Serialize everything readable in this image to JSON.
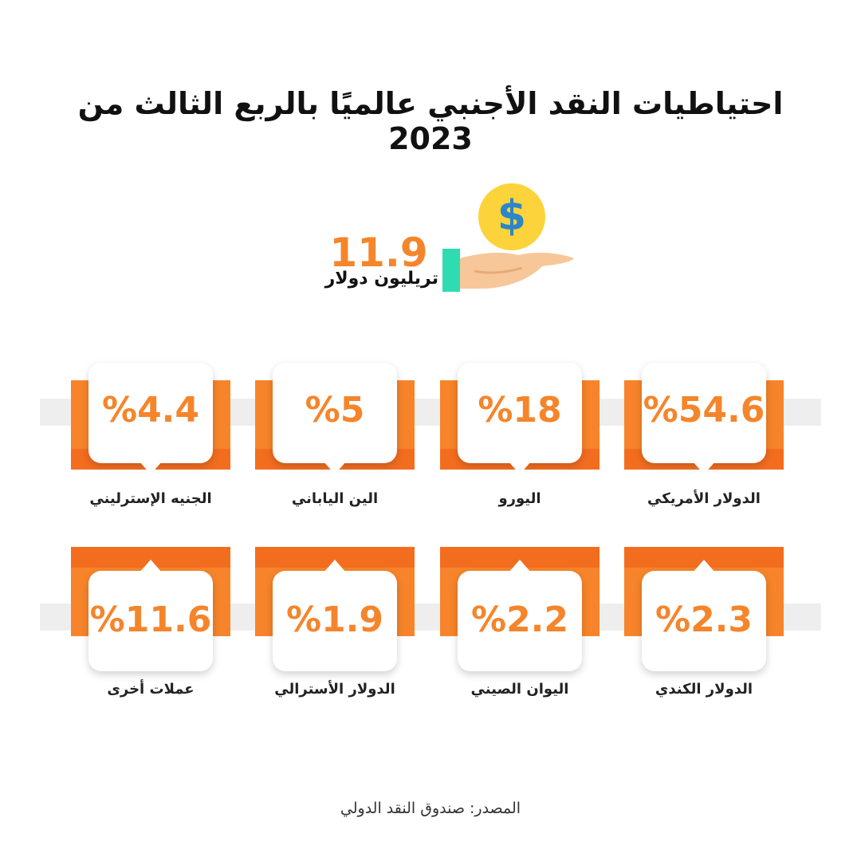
{
  "title": "احتياطيات النقد الأجنبي عالميًا بالربع الثالث من 2023",
  "total": {
    "value": "11.9",
    "label": "تريليون دولار",
    "icon": "coin-dollar-icon",
    "coin_sign": "$"
  },
  "colors": {
    "accent": "#f5852b",
    "accent_dark": "#f36d1f",
    "coin": "#fcd33a",
    "dollar_sign": "#2c86c8",
    "sleeve": "#2fdcb1",
    "hand": "#f7c79a",
    "bar": "#eeeeee"
  },
  "top_row": [
    {
      "percent": "%54.6",
      "name": "الدولار الأمريكي"
    },
    {
      "percent": "%18",
      "name": "اليورو"
    },
    {
      "percent": "%5",
      "name": "الين الياباني"
    },
    {
      "percent": "%4.4",
      "name": "الجنيه الإسترليني"
    }
  ],
  "bottom_row": [
    {
      "percent": "%2.3",
      "name": "الدولار الكندي"
    },
    {
      "percent": "%2.2",
      "name": "اليوان الصيني"
    },
    {
      "percent": "%1.9",
      "name": "الدولار الأسترالي"
    },
    {
      "percent": "%11.6",
      "name": "عملات أخرى"
    }
  ],
  "source": "المصدر: صندوق النقد الدولي"
}
